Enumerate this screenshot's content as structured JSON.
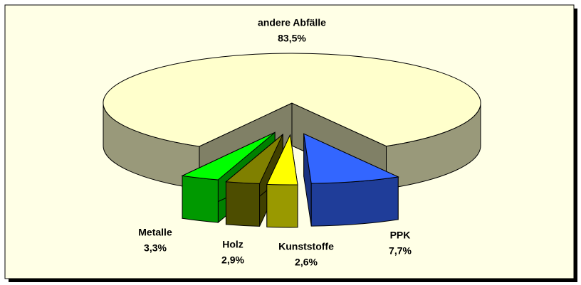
{
  "chart_data": {
    "type": "pie",
    "categories": [
      "PPK",
      "Kunststoffe",
      "Holz",
      "Metalle",
      "andere Abfälle"
    ],
    "values": [
      7.7,
      2.6,
      2.9,
      3.3,
      83.5
    ],
    "value_labels": [
      "7,7%",
      "2,6%",
      "2,9%",
      "3,3%",
      "83,5%"
    ],
    "colors": [
      "#3366ff",
      "#ffff00",
      "#808000",
      "#00ff00",
      "#ffffcc"
    ],
    "explode": [
      true,
      true,
      true,
      true,
      false
    ]
  }
}
